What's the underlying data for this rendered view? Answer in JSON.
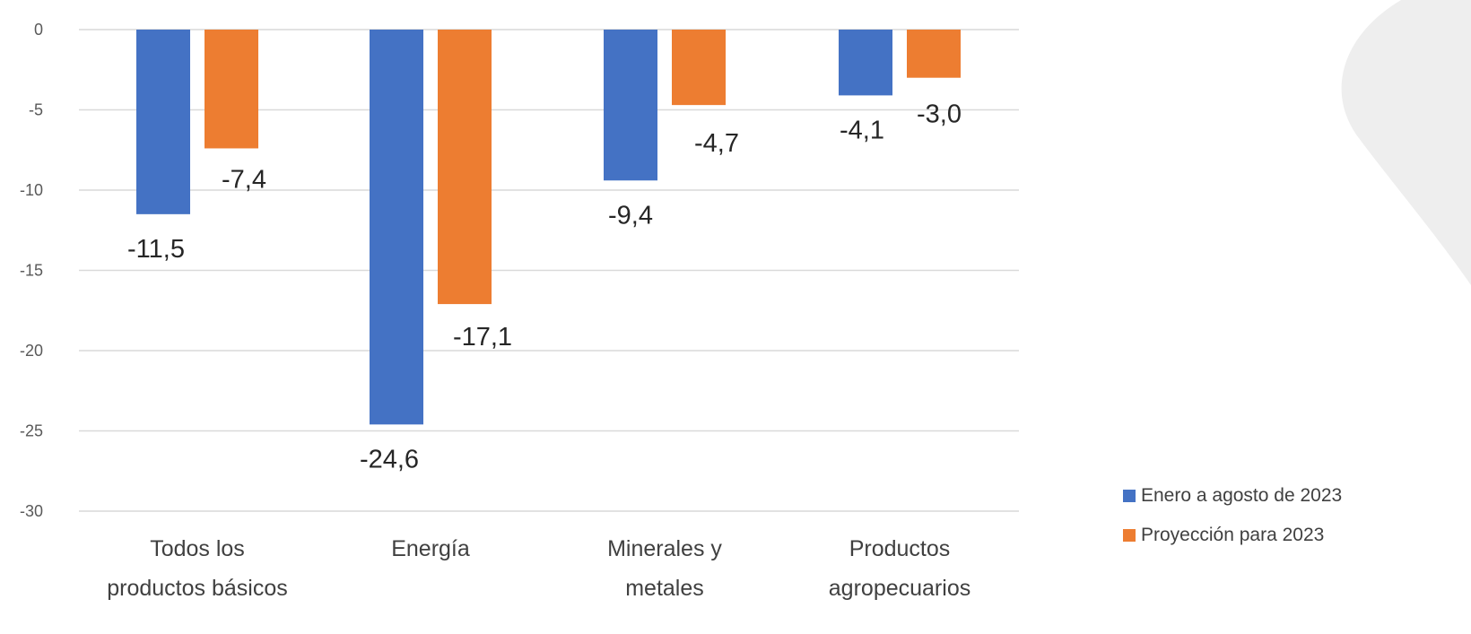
{
  "chart_data": {
    "type": "bar",
    "categories": [
      [
        "Todos los",
        "productos básicos"
      ],
      [
        "Energía"
      ],
      [
        "Minerales y",
        "metales"
      ],
      [
        "Productos",
        "agropecuarios"
      ]
    ],
    "series": [
      {
        "name": "Enero a agosto de 2023",
        "color": "#4472C4",
        "values": [
          -11.5,
          -24.6,
          -9.4,
          -4.1
        ],
        "labels": [
          "-11,5",
          "-24,6",
          "-9,4",
          "-4,1"
        ]
      },
      {
        "name": "Proyección para 2023",
        "color": "#ED7D31",
        "values": [
          -7.4,
          -17.1,
          -4.7,
          -3.0
        ],
        "labels": [
          "-7,4",
          "-17,1",
          "-4,7",
          "-3,0"
        ]
      }
    ],
    "yticks": [
      "0",
      "-5",
      "-10",
      "-15",
      "-20",
      "-25",
      "-30"
    ],
    "ylim": [
      -30,
      0
    ],
    "grid": true,
    "legend_position": "bottom-right",
    "title": "",
    "xlabel": "",
    "ylabel": ""
  }
}
